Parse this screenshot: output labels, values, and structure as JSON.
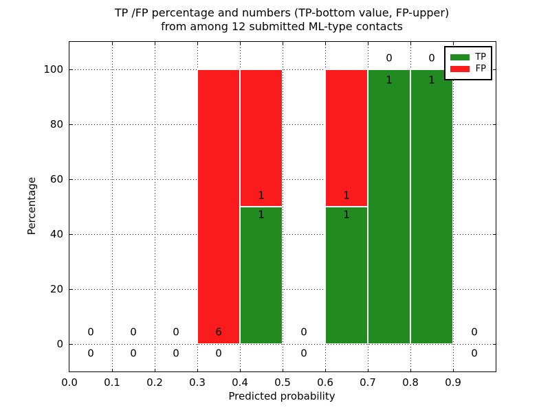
{
  "chart_data": {
    "type": "bar",
    "stacked": true,
    "title_line1": "TP /FP percentage and numbers (TP-bottom value, FP-upper)",
    "title_line2": "from among 12 submitted ML-type contacts",
    "xlabel": "Predicted probability",
    "ylabel": "Percentage",
    "xlim": [
      0.0,
      1.0
    ],
    "ylim": [
      -10,
      110
    ],
    "x_ticks": [
      "0.0",
      "0.1",
      "0.2",
      "0.3",
      "0.4",
      "0.5",
      "0.6",
      "0.7",
      "0.8",
      "0.9"
    ],
    "y_ticks": [
      "0",
      "20",
      "40",
      "60",
      "80",
      "100"
    ],
    "grid": true,
    "total_contacts": 12,
    "legend": {
      "position": "upper right",
      "items": [
        {
          "label": "TP",
          "color": "#218a21"
        },
        {
          "label": "FP",
          "color": "#fa1c1c"
        }
      ]
    },
    "colors": {
      "tp": "#218a21",
      "fp": "#fa1c1c",
      "grid": "#000000",
      "text": "#000000",
      "background": "#ffffff"
    },
    "bins": [
      {
        "x_range": [
          0.0,
          0.1
        ],
        "tp_count": 0,
        "fp_count": 0,
        "tp_pct": 0,
        "fp_pct": 0,
        "fp_label_y": 4.2,
        "tp_label_y": -3.6
      },
      {
        "x_range": [
          0.1,
          0.2
        ],
        "tp_count": 0,
        "fp_count": 0,
        "tp_pct": 0,
        "fp_pct": 0,
        "fp_label_y": 4.2,
        "tp_label_y": -3.6
      },
      {
        "x_range": [
          0.2,
          0.3
        ],
        "tp_count": 0,
        "fp_count": 0,
        "tp_pct": 0,
        "fp_pct": 0,
        "fp_label_y": 4.2,
        "tp_label_y": -3.6
      },
      {
        "x_range": [
          0.3,
          0.4
        ],
        "tp_count": 0,
        "fp_count": 6,
        "tp_pct": 0,
        "fp_pct": 100,
        "fp_label_y": 4.2,
        "tp_label_y": -3.6
      },
      {
        "x_range": [
          0.4,
          0.5
        ],
        "tp_count": 1,
        "fp_count": 1,
        "tp_pct": 50,
        "fp_pct": 50,
        "fp_label_y": 54,
        "tp_label_y": 47
      },
      {
        "x_range": [
          0.5,
          0.6
        ],
        "tp_count": 0,
        "fp_count": 0,
        "tp_pct": 0,
        "fp_pct": 0,
        "fp_label_y": 4.2,
        "tp_label_y": -3.6
      },
      {
        "x_range": [
          0.6,
          0.7
        ],
        "tp_count": 1,
        "fp_count": 1,
        "tp_pct": 50,
        "fp_pct": 50,
        "fp_label_y": 54,
        "tp_label_y": 47
      },
      {
        "x_range": [
          0.7,
          0.8
        ],
        "tp_count": 1,
        "fp_count": 0,
        "tp_pct": 100,
        "fp_pct": 0,
        "fp_label_y": 104,
        "tp_label_y": 96
      },
      {
        "x_range": [
          0.8,
          0.9
        ],
        "tp_count": 1,
        "fp_count": 0,
        "tp_pct": 100,
        "fp_pct": 0,
        "fp_label_y": 104,
        "tp_label_y": 96
      },
      {
        "x_range": [
          0.9,
          1.0
        ],
        "tp_count": 0,
        "fp_count": 0,
        "tp_pct": 0,
        "fp_pct": 0,
        "fp_label_y": 4.2,
        "tp_label_y": -3.6
      }
    ]
  }
}
